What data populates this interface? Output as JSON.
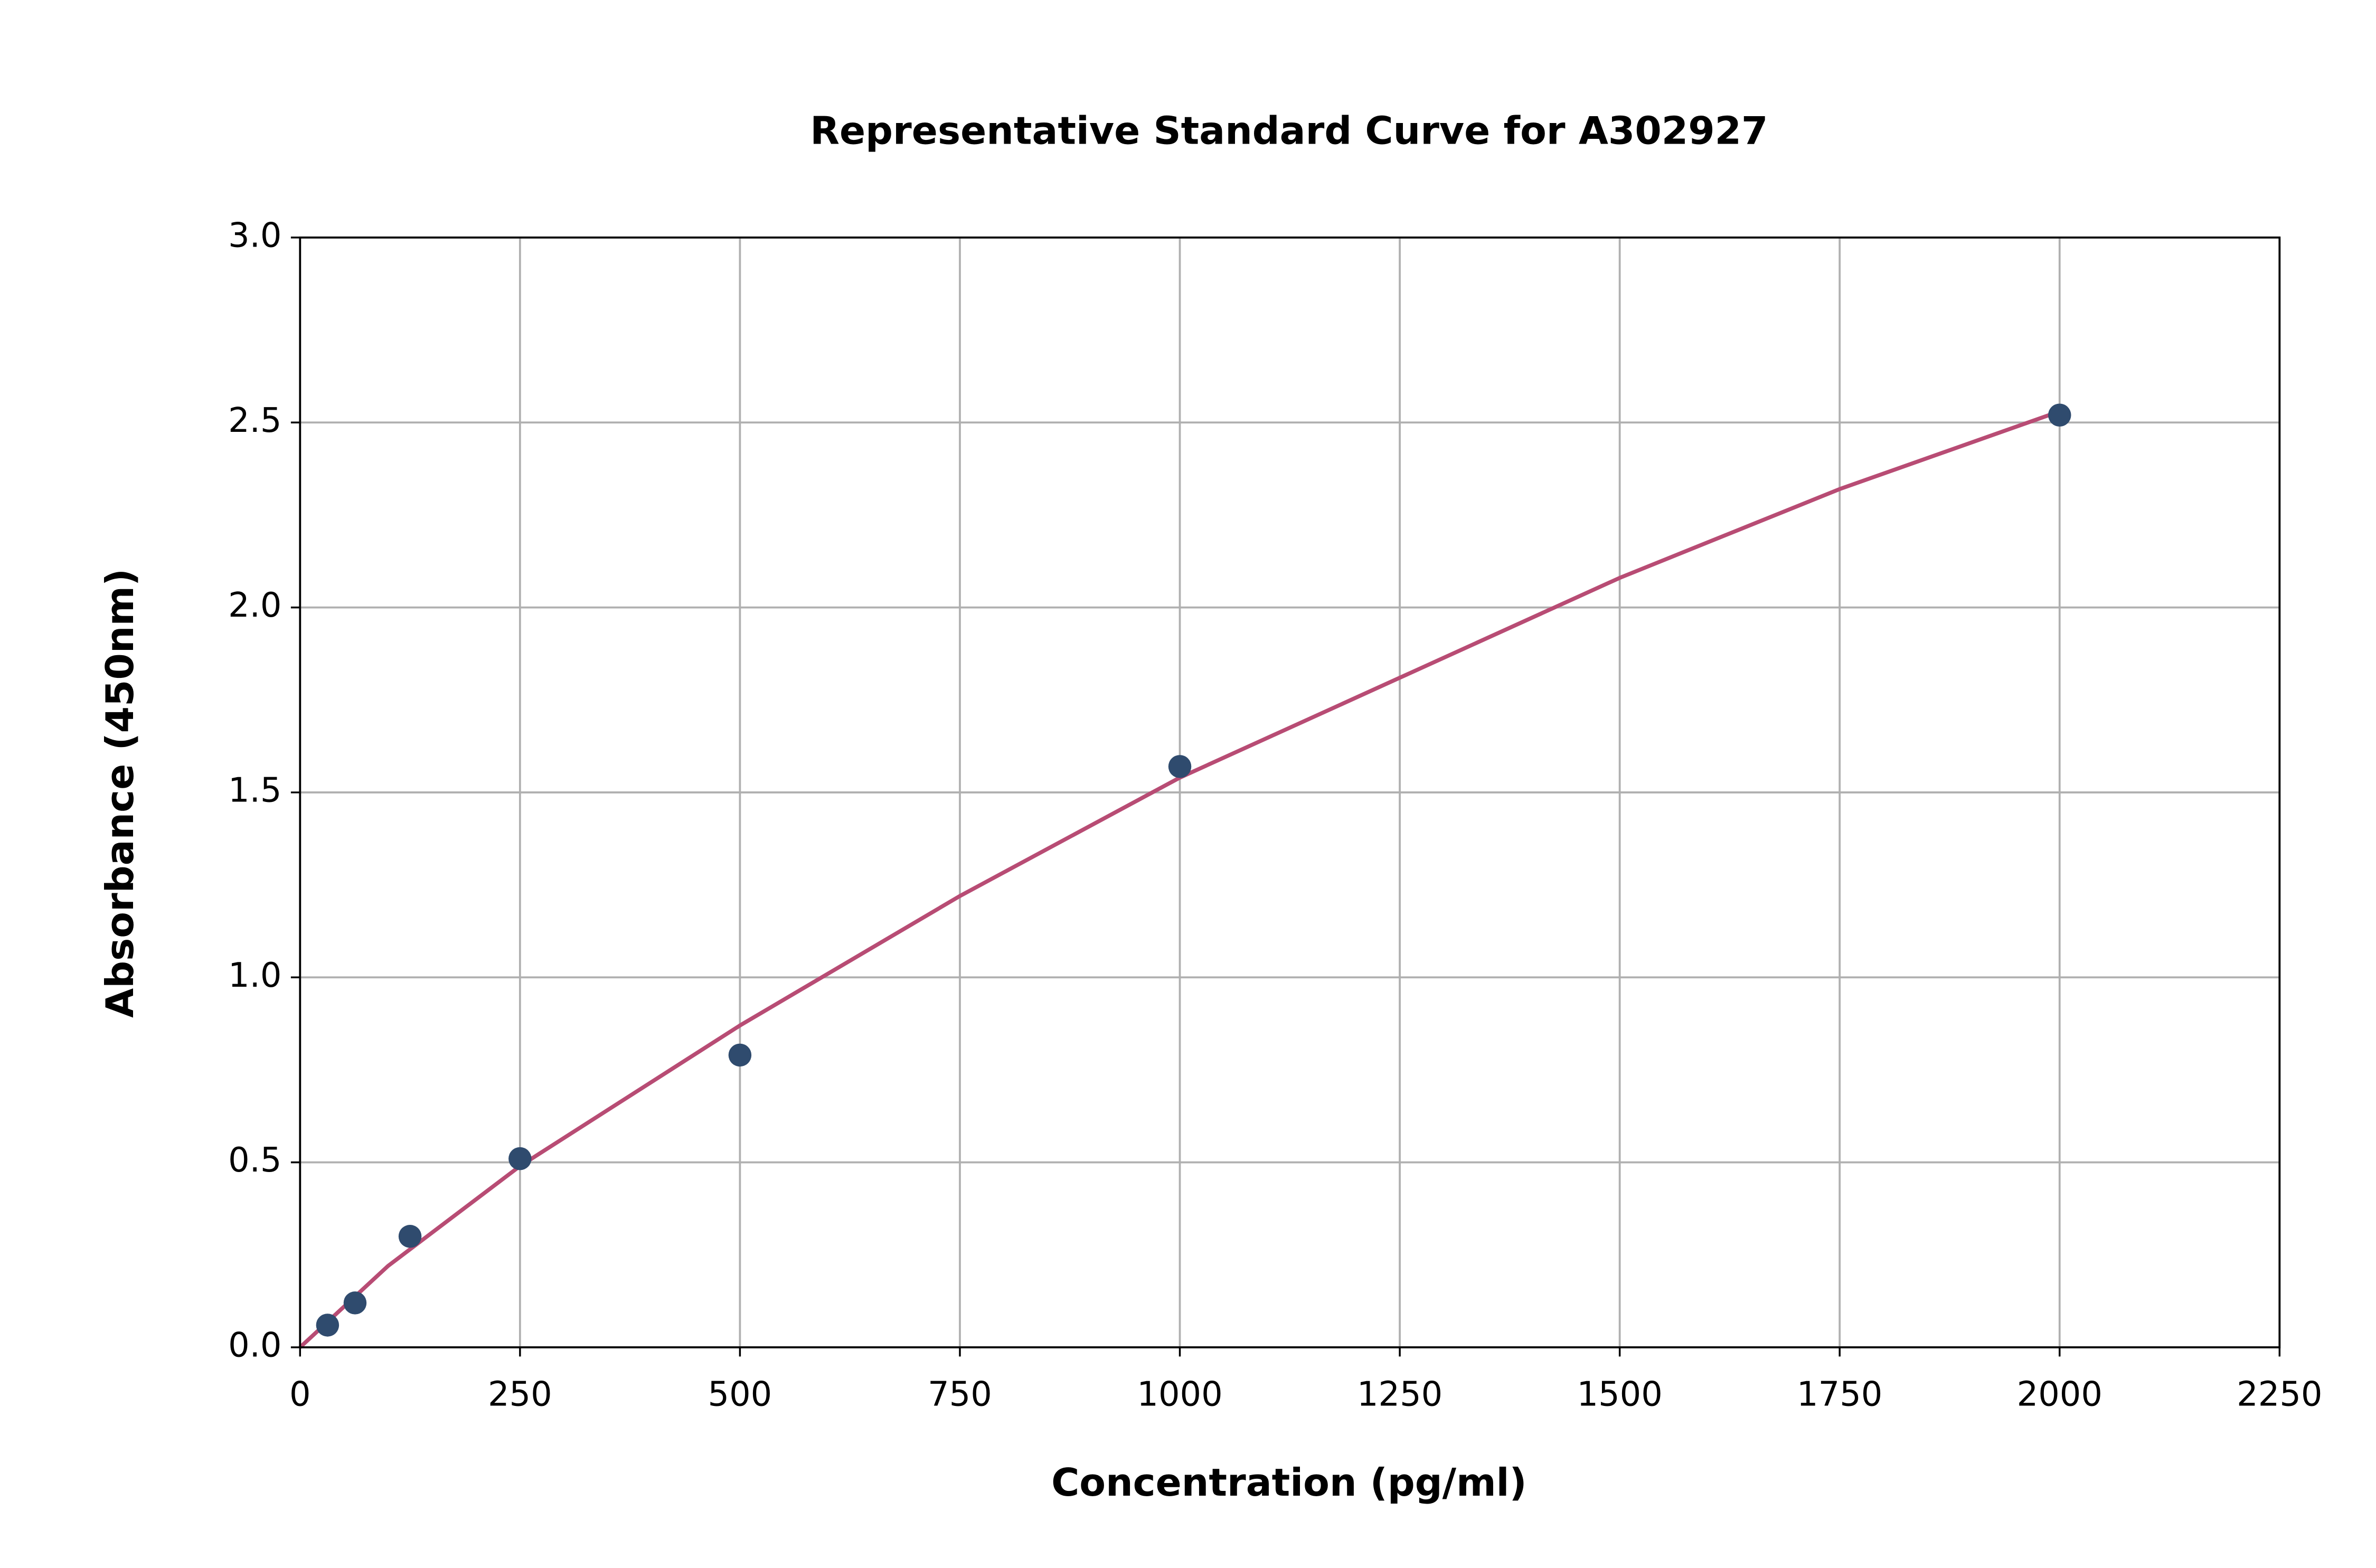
{
  "chart_data": {
    "type": "scatter",
    "title": "Representative Standard Curve for A302927",
    "x_label": "Concentration (pg/ml)",
    "y_label": "Absorbance (450nm)",
    "xlim": [
      0,
      2250
    ],
    "ylim": [
      0,
      3
    ],
    "xticks": [
      0,
      250,
      500,
      750,
      1000,
      1250,
      1500,
      1750,
      2000,
      2250
    ],
    "yticks": [
      {
        "value": 0,
        "label": "0.0"
      },
      0.5,
      {
        "value": 1,
        "label": "1.0"
      },
      1.5,
      {
        "value": 2,
        "label": "2.0"
      },
      2.5,
      {
        "value": 3,
        "label": "3.0"
      }
    ],
    "grid": true,
    "series": [
      {
        "mode": "line",
        "color": "#b84c74",
        "x": [
          0,
          100,
          250,
          500,
          750,
          1000,
          1250,
          1500,
          1750,
          2000
        ],
        "values": [
          0.0,
          0.22,
          0.49,
          0.87,
          1.22,
          1.54,
          1.81,
          2.08,
          2.32,
          2.53
        ]
      },
      {
        "mode": "markers",
        "color": "#2f4b6e",
        "x": [
          31.25,
          62.5,
          125,
          250,
          500,
          1000,
          2000
        ],
        "values": [
          0.06,
          0.12,
          0.3,
          0.51,
          0.79,
          1.57,
          2.52
        ]
      }
    ]
  }
}
